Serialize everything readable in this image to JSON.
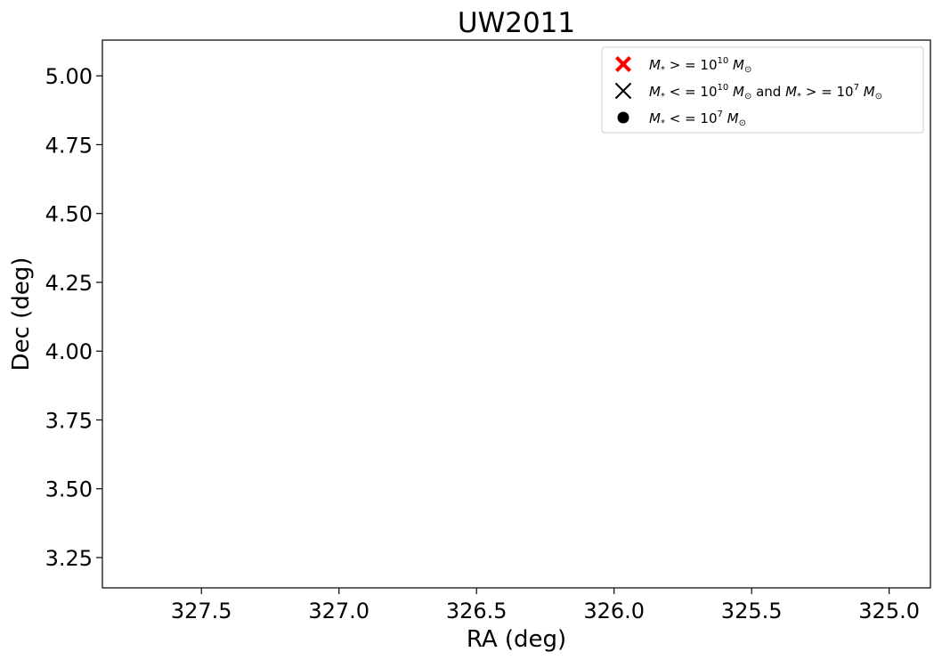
{
  "chart_data": {
    "type": "scatter",
    "title": "UW2011",
    "xlabel": "RA (deg)",
    "ylabel": "Dec (deg)",
    "xlim": [
      327.86,
      324.85
    ],
    "ylim": [
      3.14,
      5.13
    ],
    "x_inverted": true,
    "x_ticks": [
      327.5,
      327.0,
      326.5,
      326.0,
      325.5,
      325.0
    ],
    "x_tick_labels": [
      "327.5",
      "327.0",
      "326.5",
      "326.0",
      "325.5",
      "325.0"
    ],
    "y_ticks": [
      3.25,
      3.5,
      3.75,
      4.0,
      4.25,
      4.5,
      4.75,
      5.0
    ],
    "y_tick_labels": [
      "3.25",
      "3.50",
      "3.75",
      "4.00",
      "4.25",
      "4.50",
      "4.75",
      "5.00"
    ],
    "grid": false,
    "legend_position": "upper right",
    "series": [
      {
        "name": "M* >= 10^10 M☉",
        "marker": "filled-x",
        "color": "#ff0000",
        "x": [],
        "y": []
      },
      {
        "name": "M* <= 10^10 M☉ and M* >= 10^7 M☉",
        "marker": "x",
        "color": "#000000",
        "x": [],
        "y": []
      },
      {
        "name": "M* <= 10^7 M☉",
        "marker": "circle",
        "color": "#000000",
        "x": [],
        "y": []
      }
    ]
  },
  "legend": {
    "entries": [
      {
        "main": "M",
        "sub": "*",
        "rel": " > = 10",
        "exp": "10",
        "unit": " M",
        "unit_sub": "⊙"
      },
      {
        "main": "M",
        "sub": "*",
        "rel": " < = 10",
        "exp": "10",
        "unit": " M",
        "unit_sub": "⊙",
        "conj": "  and ",
        "main2": "M",
        "sub2": "*",
        "rel2": " > = 10",
        "exp2": "7",
        "unit2": " M",
        "unit_sub2": "⊙"
      },
      {
        "main": "M",
        "sub": "*",
        "rel": " < = 10",
        "exp": "7",
        "unit": " M",
        "unit_sub": "⊙"
      }
    ]
  }
}
